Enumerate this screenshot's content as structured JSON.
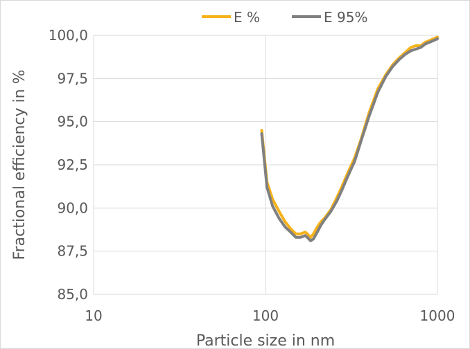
{
  "chart_data": {
    "type": "line",
    "xscale": "log",
    "xlim": [
      10,
      1000
    ],
    "ylim": [
      85.0,
      100.0
    ],
    "xticks": [
      "10",
      "100",
      "1000"
    ],
    "yticks": [
      "85,0",
      "87,5",
      "90,0",
      "92,5",
      "95,0",
      "97,5",
      "100,0"
    ],
    "xlabel": "Particle size in nm",
    "ylabel": "Fractional efficiency in %",
    "grid": true,
    "legend_position": "top",
    "series": [
      {
        "name": "E %",
        "color": "#f5b21a",
        "x": [
          95,
          102,
          110,
          120,
          130,
          140,
          150,
          160,
          170,
          175,
          183,
          190,
          200,
          210,
          220,
          240,
          260,
          280,
          300,
          330,
          360,
          400,
          450,
          500,
          550,
          600,
          650,
          700,
          750,
          800,
          850,
          900,
          950,
          1000
        ],
        "y": [
          94.5,
          91.5,
          90.5,
          89.8,
          89.2,
          88.8,
          88.5,
          88.5,
          88.6,
          88.5,
          88.3,
          88.5,
          88.9,
          89.2,
          89.4,
          89.9,
          90.6,
          91.3,
          92.0,
          92.9,
          94.0,
          95.5,
          96.9,
          97.7,
          98.3,
          98.7,
          99.0,
          99.3,
          99.4,
          99.4,
          99.6,
          99.7,
          99.8,
          99.9
        ]
      },
      {
        "name": "E 95%",
        "color": "#808080",
        "x": [
          95,
          102,
          110,
          120,
          130,
          140,
          150,
          160,
          170,
          175,
          183,
          190,
          200,
          210,
          220,
          240,
          260,
          280,
          300,
          330,
          360,
          400,
          450,
          500,
          550,
          600,
          650,
          700,
          750,
          800,
          850,
          900,
          950,
          1000
        ],
        "y": [
          94.3,
          91.2,
          90.1,
          89.4,
          88.9,
          88.6,
          88.3,
          88.3,
          88.4,
          88.3,
          88.1,
          88.2,
          88.6,
          89.0,
          89.3,
          89.8,
          90.4,
          91.1,
          91.8,
          92.7,
          93.9,
          95.3,
          96.7,
          97.6,
          98.2,
          98.6,
          98.9,
          99.1,
          99.2,
          99.3,
          99.5,
          99.6,
          99.7,
          99.8
        ]
      }
    ]
  }
}
